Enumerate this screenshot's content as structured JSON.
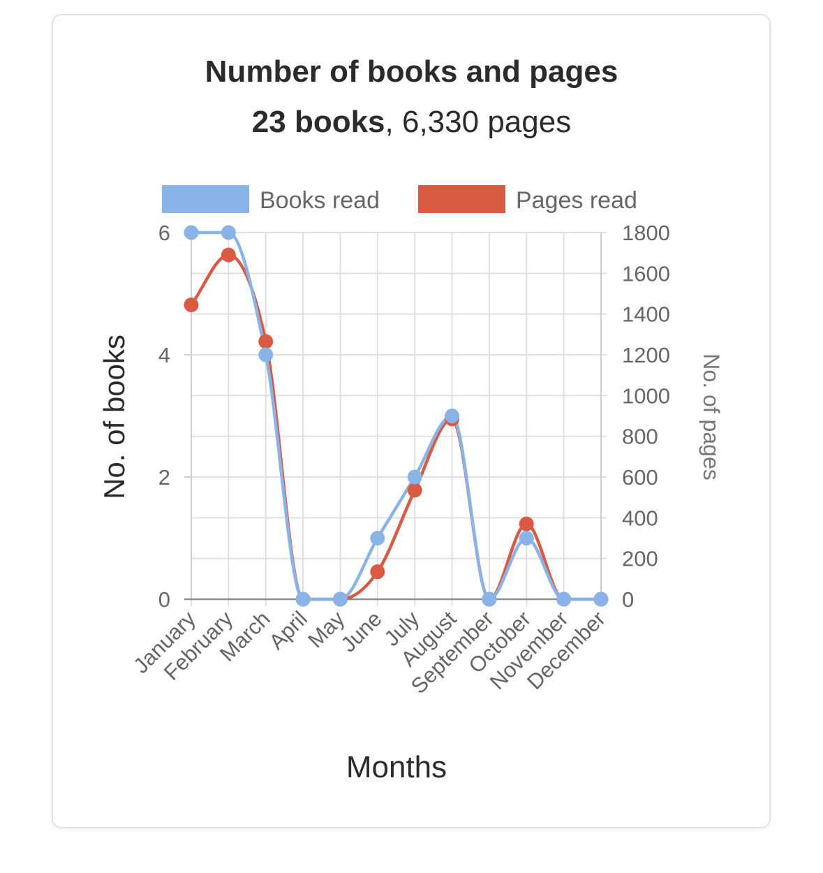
{
  "card": {
    "title": "Number of books and pages",
    "subtitle_bold": "23 books",
    "subtitle_rest": ", 6,330 pages"
  },
  "chart_data": {
    "type": "line",
    "title": "Number of books and pages",
    "subtitle": "23 books, 6,330 pages",
    "categories": [
      "January",
      "February",
      "March",
      "April",
      "May",
      "June",
      "July",
      "August",
      "September",
      "October",
      "November",
      "December"
    ],
    "xlabel": "Months",
    "ylabel": "No. of books",
    "y2label": "No. of pages",
    "ylim": [
      0,
      6
    ],
    "y2lim": [
      0,
      1800
    ],
    "yticks": [
      0,
      2,
      4,
      6
    ],
    "y2ticks": [
      0,
      200,
      400,
      600,
      800,
      1000,
      1200,
      1400,
      1600,
      1800
    ],
    "grid": true,
    "legend_position": "top",
    "series": [
      {
        "name": "Books read",
        "axis": "left",
        "color": "#8ab4e8",
        "values": [
          6,
          6,
          4,
          0,
          0,
          1,
          2,
          3,
          0,
          1,
          0,
          0
        ]
      },
      {
        "name": "Pages read",
        "axis": "right",
        "color": "#d95a43",
        "values": [
          1445,
          1690,
          1265,
          0,
          0,
          135,
          535,
          885,
          0,
          370,
          0,
          0
        ]
      }
    ]
  }
}
